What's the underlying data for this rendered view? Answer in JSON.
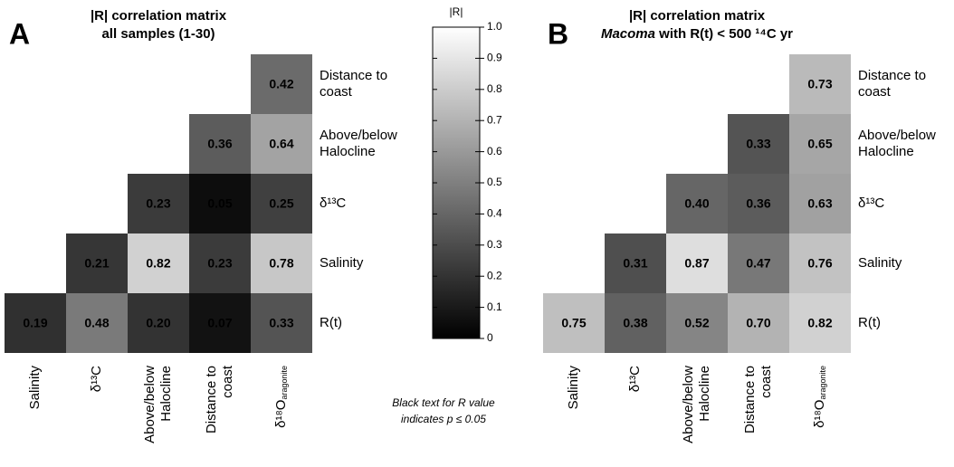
{
  "chart_data": [
    {
      "type": "heatmap",
      "panel_label": "A",
      "title": "|R| correlation matrix",
      "subtitle": "all samples (1-30)",
      "x_categories": [
        [
          "Salinity"
        ],
        [
          "δ¹³C"
        ],
        [
          "Above/below",
          "Halocline"
        ],
        [
          "Distance to",
          "coast"
        ],
        [
          "δ¹⁸O"
        ]
      ],
      "x_category_subscripts": [
        null,
        null,
        null,
        null,
        "aragonite"
      ],
      "y_categories": [
        [
          "Distance to",
          "coast"
        ],
        [
          "Above/below",
          "Halocline"
        ],
        [
          "δ¹³C"
        ],
        [
          "Salinity"
        ],
        [
          "R(t)"
        ]
      ],
      "values": [
        [
          null,
          null,
          null,
          null,
          0.42
        ],
        [
          null,
          null,
          null,
          0.36,
          0.64
        ],
        [
          null,
          null,
          0.23,
          0.05,
          0.25
        ],
        [
          null,
          0.21,
          0.82,
          0.23,
          0.78
        ],
        [
          0.19,
          0.48,
          0.2,
          0.07,
          0.33
        ]
      ],
      "value_labels": [
        [
          null,
          null,
          null,
          null,
          "0.42"
        ],
        [
          null,
          null,
          null,
          "0.36",
          "0.64"
        ],
        [
          null,
          null,
          "0.23",
          "0.05",
          "0.25"
        ],
        [
          null,
          "0.21",
          "0.82",
          "0.23",
          "0.78"
        ],
        [
          "0.19",
          "0.48",
          "0.20",
          "0.07",
          "0.33"
        ]
      ],
      "label_colors": [
        [
          null,
          null,
          null,
          null,
          "#000000"
        ],
        [
          null,
          null,
          null,
          "#000000",
          "#000000"
        ],
        [
          null,
          null,
          "#ffffff",
          "#ffffff",
          "#ffffff"
        ],
        [
          null,
          "#ffffff",
          "#000000",
          "#ffffff",
          "#000000"
        ],
        [
          "#ffffff",
          "#000000",
          "#ffffff",
          "#ffffff",
          "#ffffff"
        ]
      ],
      "colormap": [
        "#000000",
        "#ffffff"
      ],
      "clim": [
        0,
        1
      ]
    },
    {
      "type": "heatmap",
      "panel_label": "B",
      "title": "|R| correlation matrix",
      "subtitle_italic": "Macoma",
      "subtitle": "with R(t) < 500 ¹⁴C yr",
      "x_categories": [
        [
          "Salinity"
        ],
        [
          "δ¹³C"
        ],
        [
          "Above/below",
          "Halocline"
        ],
        [
          "Distance to",
          "coast"
        ],
        [
          "δ¹⁸O"
        ]
      ],
      "x_category_subscripts": [
        null,
        null,
        null,
        null,
        "aragonite"
      ],
      "y_categories": [
        [
          "Distance to",
          "coast"
        ],
        [
          "Above/below",
          "Halocline"
        ],
        [
          "δ¹³C"
        ],
        [
          "Salinity"
        ],
        [
          "R(t)"
        ]
      ],
      "values": [
        [
          null,
          null,
          null,
          null,
          0.73
        ],
        [
          null,
          null,
          null,
          0.33,
          0.65
        ],
        [
          null,
          null,
          0.4,
          0.36,
          0.63
        ],
        [
          null,
          0.31,
          0.87,
          0.47,
          0.76
        ],
        [
          0.75,
          0.38,
          0.52,
          0.7,
          0.82
        ]
      ],
      "value_labels": [
        [
          null,
          null,
          null,
          null,
          "0.73"
        ],
        [
          null,
          null,
          null,
          "0.33",
          "0.65"
        ],
        [
          null,
          null,
          "0.40",
          "0.36",
          "0.63"
        ],
        [
          null,
          "0.31",
          "0.87",
          "0.47",
          "0.76"
        ],
        [
          "0.75",
          "0.38",
          "0.52",
          "0.70",
          "0.82"
        ]
      ],
      "label_colors": [
        [
          null,
          null,
          null,
          null,
          "#000000"
        ],
        [
          null,
          null,
          null,
          "#ffffff",
          "#000000"
        ],
        [
          null,
          null,
          "#ffffff",
          "#ffffff",
          "#000000"
        ],
        [
          null,
          "#ffffff",
          "#000000",
          "#ffffff",
          "#000000"
        ],
        [
          "#000000",
          "#ffffff",
          "#ffffff",
          "#000000",
          "#000000"
        ]
      ],
      "colormap": [
        "#000000",
        "#ffffff"
      ],
      "clim": [
        0,
        1
      ]
    },
    {
      "type": "colorbar",
      "title": "|R|",
      "ylim": [
        0,
        1
      ],
      "yticks": [
        0,
        0.1,
        0.2,
        0.3,
        0.4,
        0.5,
        0.6,
        0.7,
        0.8,
        0.9,
        {
          "value": 1,
          "label": "1.0"
        }
      ],
      "colormap": [
        "#000000",
        "#ffffff"
      ],
      "note": [
        "Black text for R value",
        "indicates p ≤ 0.05"
      ]
    }
  ]
}
